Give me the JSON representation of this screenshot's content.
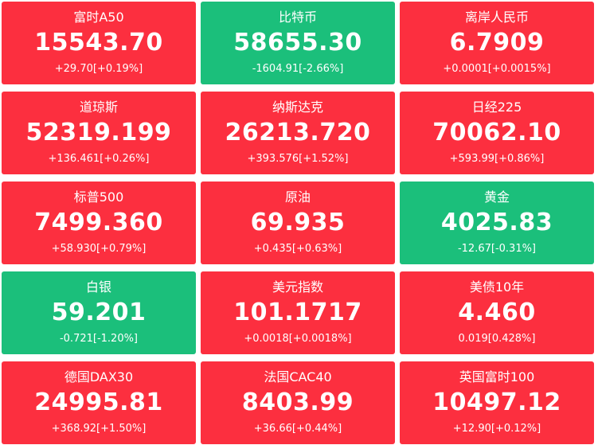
{
  "tiles": [
    {
      "name": "富时A50",
      "price": "15543.70",
      "change": "+29.70[+0.19%]",
      "color": "#fc2f3f"
    },
    {
      "name": "比特币",
      "price": "58655.30",
      "change": "-1604.91[-2.66%]",
      "color": "#1bbf7b"
    },
    {
      "name": "离岸人民币",
      "price": "6.7909",
      "change": "+0.0001[+0.0015%]",
      "color": "#fc2f3f"
    },
    {
      "name": "道琼斯",
      "price": "52319.199",
      "change": "+136.461[+0.26%]",
      "color": "#fc2f3f"
    },
    {
      "name": "纳斯达克",
      "price": "26213.720",
      "change": "+393.576[+1.52%]",
      "color": "#fc2f3f"
    },
    {
      "name": "日经225",
      "price": "70062.10",
      "change": "+593.99[+0.86%]",
      "color": "#fc2f3f"
    },
    {
      "name": "标普500",
      "price": "7499.360",
      "change": "+58.930[+0.79%]",
      "color": "#fc2f3f"
    },
    {
      "name": "原油",
      "price": "69.935",
      "change": "+0.435[+0.63%]",
      "color": "#fc2f3f"
    },
    {
      "name": "黄金",
      "price": "4025.83",
      "change": "-12.67[-0.31%]",
      "color": "#1bbf7b"
    },
    {
      "name": "白银",
      "price": "59.201",
      "change": "-0.721[-1.20%]",
      "color": "#1bbf7b"
    },
    {
      "name": "美元指数",
      "price": "101.1717",
      "change": "+0.0018[+0.0018%]",
      "color": "#fc2f3f"
    },
    {
      "name": "美债10年",
      "price": "4.460",
      "change": "0.019[0.428%]",
      "color": "#fc2f3f"
    },
    {
      "name": "德国DAX30",
      "price": "24995.81",
      "change": "+368.92[+1.50%]",
      "color": "#fc2f3f"
    },
    {
      "name": "法国CAC40",
      "price": "8403.99",
      "change": "+36.66[+0.44%]",
      "color": "#fc2f3f"
    },
    {
      "name": "英国富时100",
      "price": "10497.12",
      "change": "+12.90[+0.12%]",
      "color": "#fc2f3f"
    }
  ]
}
